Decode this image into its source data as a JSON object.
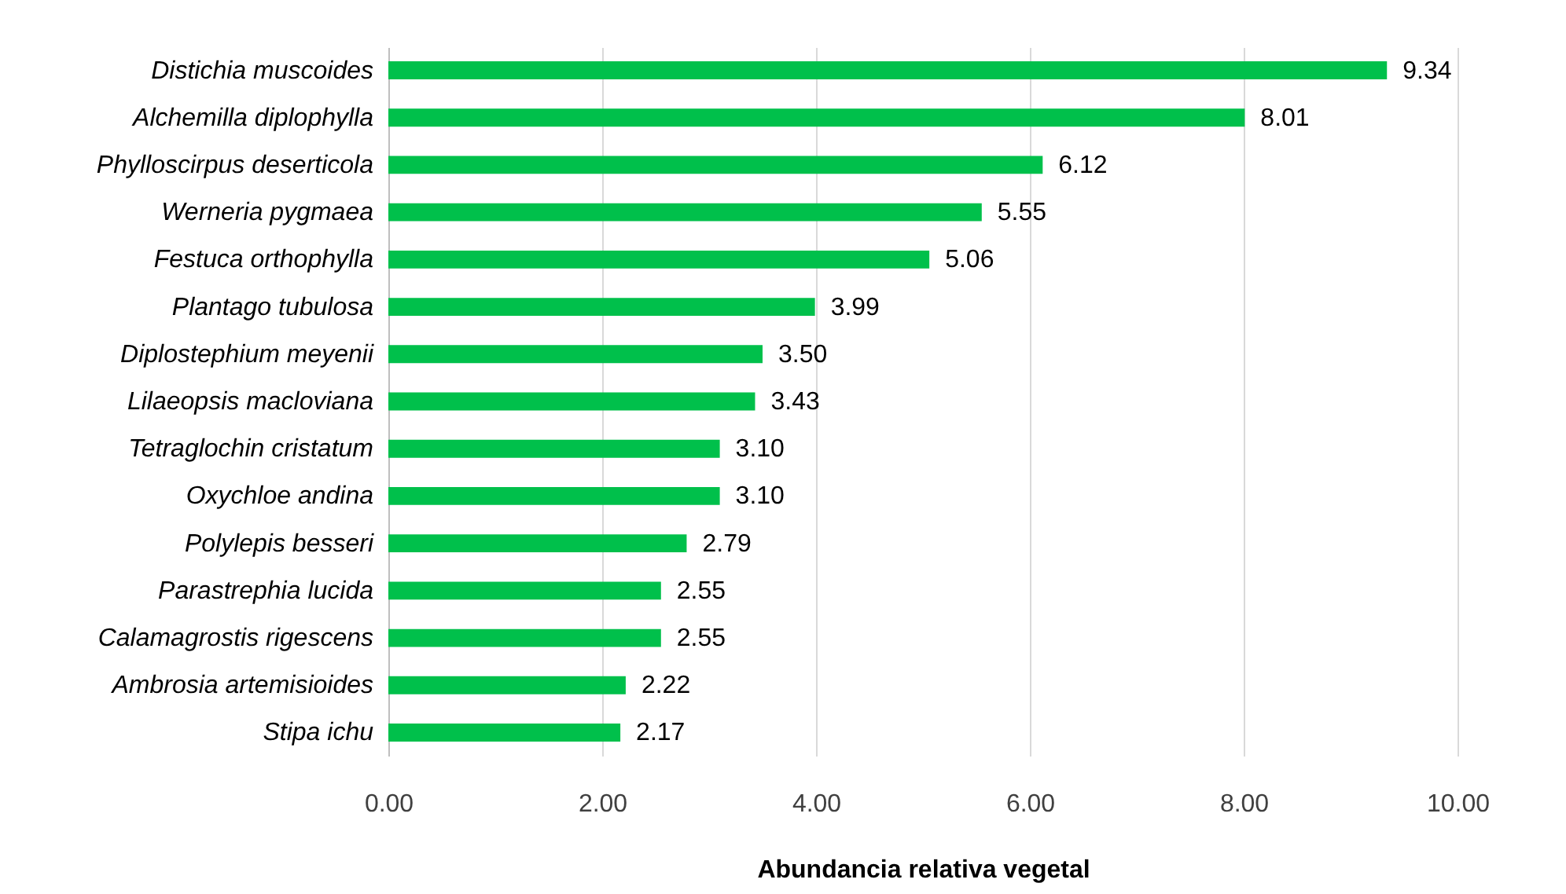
{
  "chart_data": {
    "type": "bar",
    "orientation": "horizontal",
    "xlabel": "Abundancia relativa vegetal",
    "categories": [
      "Distichia muscoides",
      "Alchemilla diplophylla",
      "Phylloscirpus deserticola",
      "Werneria pygmaea",
      "Festuca orthophylla",
      "Plantago tubulosa",
      "Diplostephium meyenii",
      "Lilaeopsis macloviana",
      "Tetraglochin cristatum",
      "Oxychloe andina",
      "Polylepis besseri",
      "Parastrephia lucida",
      "Calamagrostis rigescens",
      "Ambrosia artemisioides",
      "Stipa ichu"
    ],
    "values": [
      9.34,
      8.01,
      6.12,
      5.55,
      5.06,
      3.99,
      3.5,
      3.43,
      3.1,
      3.1,
      2.79,
      2.55,
      2.55,
      2.22,
      2.17
    ],
    "value_labels": [
      "9.34",
      "8.01",
      "6.12",
      "5.55",
      "5.06",
      "3.99",
      "3.50",
      "3.43",
      "3.10",
      "3.10",
      "2.79",
      "2.55",
      "2.55",
      "2.22",
      "2.17"
    ],
    "color": "#00c04b",
    "xlim": [
      0,
      10
    ],
    "xticks": [
      {
        "value": 0,
        "label": "0.00"
      },
      {
        "value": 2,
        "label": "2.00"
      },
      {
        "value": 4,
        "label": "4.00"
      },
      {
        "value": 6,
        "label": "6.00"
      },
      {
        "value": 8,
        "label": "8.00"
      },
      {
        "value": 10,
        "label": "10.00"
      }
    ],
    "grid": "x"
  }
}
